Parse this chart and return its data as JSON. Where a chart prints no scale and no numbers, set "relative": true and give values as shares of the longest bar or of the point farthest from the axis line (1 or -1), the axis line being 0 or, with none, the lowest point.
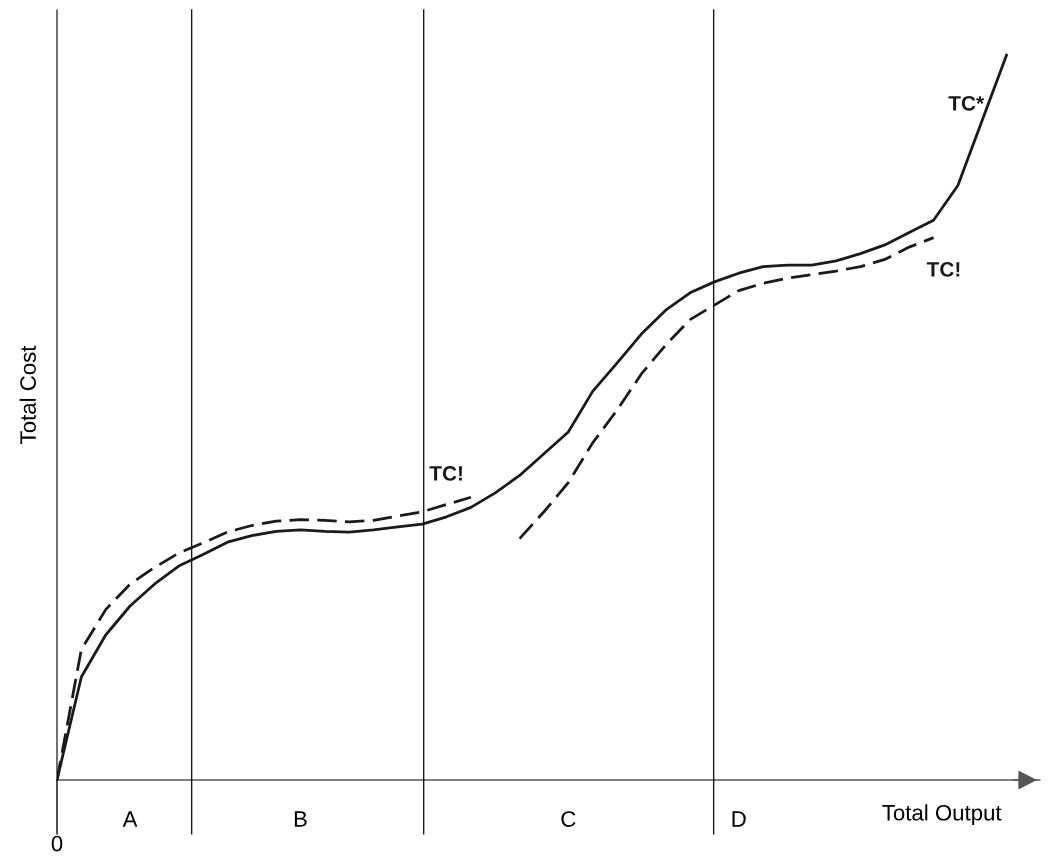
{
  "chart_data": {
    "type": "line",
    "relative": true,
    "xlabel": "Total Output",
    "ylabel": "Total Cost",
    "annotations": [
      "0"
    ],
    "categories": [
      null,
      null,
      null,
      "A",
      null,
      null,
      null,
      null,
      null,
      null,
      "B",
      null,
      null,
      null,
      null,
      null,
      null,
      null,
      null,
      null,
      null,
      "C",
      null,
      null,
      null,
      null,
      null,
      null,
      "D",
      null,
      null,
      null,
      null,
      null,
      null,
      null,
      null,
      null,
      null,
      null
    ],
    "series": [
      {
        "name": "TC*",
        "color": "#1a1a1a",
        "line_style": "solid",
        "values": [
          0,
          0.142,
          0.2,
          0.24,
          0.27,
          0.295,
          0.311,
          0.328,
          0.337,
          0.343,
          0.345,
          0.343,
          0.342,
          0.345,
          0.349,
          0.353,
          0.363,
          0.376,
          0.396,
          0.42,
          0.45,
          0.48,
          0.536,
          0.575,
          0.615,
          0.648,
          0.672,
          0.687,
          0.699,
          0.708,
          0.71,
          0.71,
          0.716,
          0.726,
          0.738,
          0.755,
          0.772,
          0.82,
          0.91,
          1
        ]
      },
      {
        "name": "TC!",
        "color": "#1a1a1a",
        "line_style": "dashed",
        "values": [
          0,
          0.18,
          0.235,
          0.27,
          0.293,
          0.313,
          0.327,
          0.342,
          0.351,
          0.357,
          0.359,
          0.358,
          0.356,
          0.358,
          0.364,
          0.37,
          0.38,
          0.39,
          null,
          null,
          null,
          null,
          null,
          null,
          null,
          null,
          null,
          null,
          null,
          null,
          null,
          null,
          null,
          null,
          null,
          null,
          null,
          null,
          null,
          null
        ]
      },
      {
        "name": "TC!",
        "color": "#1a1a1a",
        "line_style": "dashed",
        "values": [
          null,
          null,
          null,
          null,
          null,
          null,
          null,
          null,
          null,
          null,
          null,
          null,
          null,
          null,
          null,
          null,
          null,
          null,
          null,
          0.333,
          0.37,
          0.41,
          0.465,
          0.51,
          0.56,
          0.6,
          0.635,
          0.655,
          0.675,
          0.685,
          0.692,
          0.697,
          0.702,
          0.708,
          0.718,
          0.735,
          0.748,
          null,
          null,
          null
        ]
      }
    ],
    "legend": false
  }
}
